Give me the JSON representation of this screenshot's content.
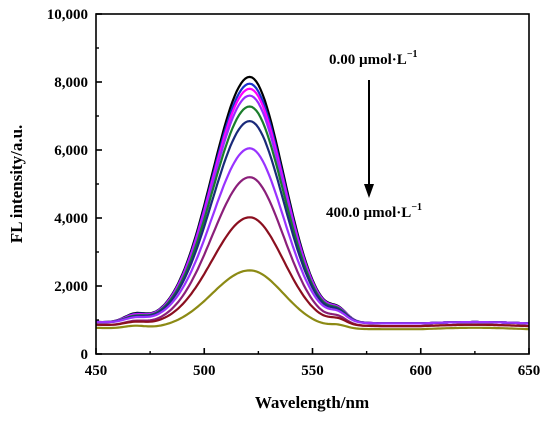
{
  "chart_data": {
    "type": "line",
    "title": "",
    "xlabel": "Wavelength/nm",
    "ylabel": "FL intensity/a.u.",
    "xlim": [
      450,
      650
    ],
    "ylim": [
      0,
      10000
    ],
    "x_ticks": [
      "450",
      "500",
      "550",
      "600",
      "650"
    ],
    "y_ticks": [
      "0",
      "2,000",
      "4,000",
      "6,000",
      "8,000",
      "10,000"
    ],
    "grid": false,
    "legend": "none",
    "annotations": {
      "top": {
        "main": "0.00 µmol·L",
        "sup": "−1"
      },
      "bottom": {
        "main": "400.0 µmol·L",
        "sup": "−1"
      }
    },
    "series": [
      {
        "peak": 8150,
        "color": "#000000"
      },
      {
        "peak": 7950,
        "color": "#1a33cc"
      },
      {
        "peak": 7800,
        "color": "#ff00ff"
      },
      {
        "peak": 7600,
        "color": "#9a2bff"
      },
      {
        "peak": 7280,
        "color": "#1a7d2c"
      },
      {
        "peak": 6850,
        "color": "#1a2a7a"
      },
      {
        "peak": 6050,
        "color": "#9933ff"
      },
      {
        "peak": 5200,
        "color": "#8b1f7a"
      },
      {
        "peak": 4020,
        "color": "#8b0f1f"
      },
      {
        "peak": 2460,
        "color": "#8c8a14"
      }
    ]
  }
}
